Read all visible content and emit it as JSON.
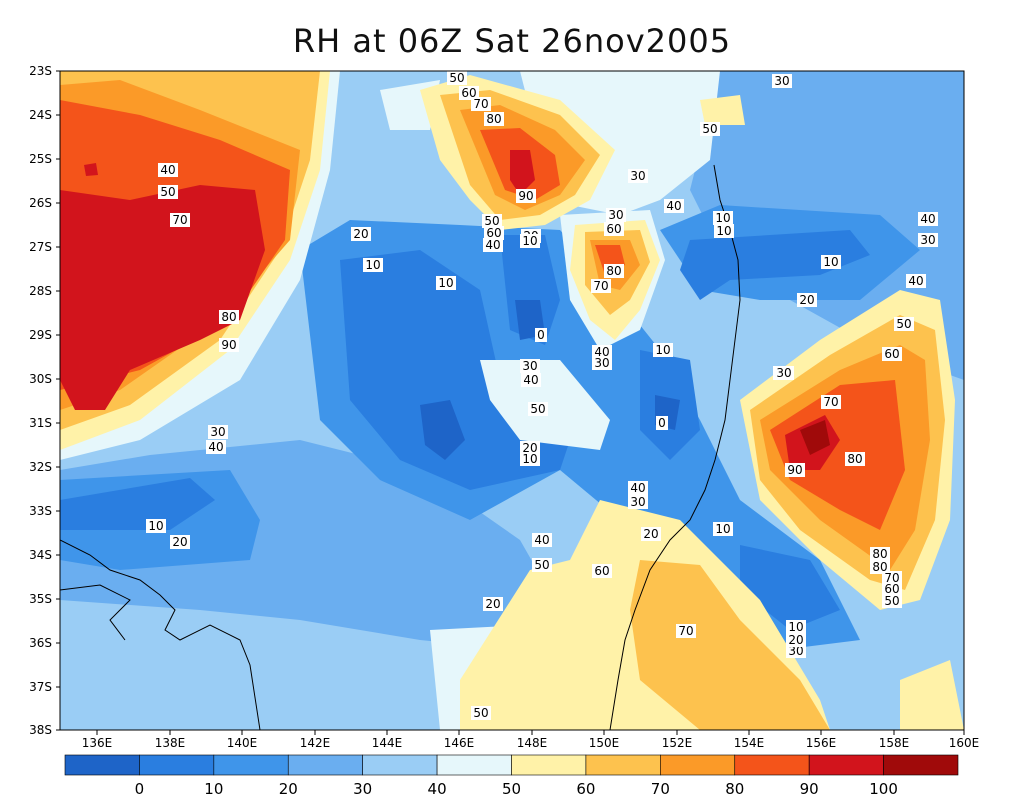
{
  "title": "RH at 06Z Sat 26nov2005",
  "lat_labels": [
    "23S",
    "24S",
    "25S",
    "26S",
    "27S",
    "28S",
    "29S",
    "30S",
    "31S",
    "32S",
    "33S",
    "34S",
    "35S",
    "36S",
    "37S",
    "38S"
  ],
  "lon_labels": [
    "136E",
    "138E",
    "140E",
    "142E",
    "144E",
    "146E",
    "148E",
    "150E",
    "152E",
    "154E",
    "156E",
    "158E",
    "160E"
  ],
  "colorbar": {
    "labels": [
      "0",
      "10",
      "20",
      "30",
      "40",
      "50",
      "60",
      "70",
      "80",
      "90",
      "100"
    ],
    "colors": [
      "#1e64c8",
      "#2a7ee0",
      "#3f95ea",
      "#6aaef0",
      "#9acdf5",
      "#e6f7fb",
      "#fff2a8",
      "#fdc24e",
      "#fb9a28",
      "#f4541a",
      "#d2141c",
      "#a00a0a"
    ]
  },
  "contour_labels": [
    "50",
    "60",
    "70",
    "80",
    "90",
    "40",
    "50",
    "70",
    "80",
    "90",
    "30",
    "40",
    "50",
    "60",
    "40",
    "30",
    "20",
    "10",
    "20",
    "10",
    "10",
    "10",
    "0",
    "30",
    "40",
    "20",
    "10",
    "60",
    "80",
    "70",
    "40",
    "30",
    "10",
    "0",
    "10",
    "20",
    "30",
    "40",
    "30",
    "40",
    "50",
    "60",
    "70",
    "80",
    "90",
    "80",
    "80",
    "70",
    "60",
    "50",
    "40",
    "30",
    "20",
    "10",
    "40",
    "50",
    "60",
    "10",
    "20",
    "30",
    "40",
    "50",
    "30",
    "70",
    "10",
    "20",
    "30",
    "20",
    "10",
    "30",
    "50",
    "50",
    "10",
    "20",
    "20",
    "30"
  ]
}
